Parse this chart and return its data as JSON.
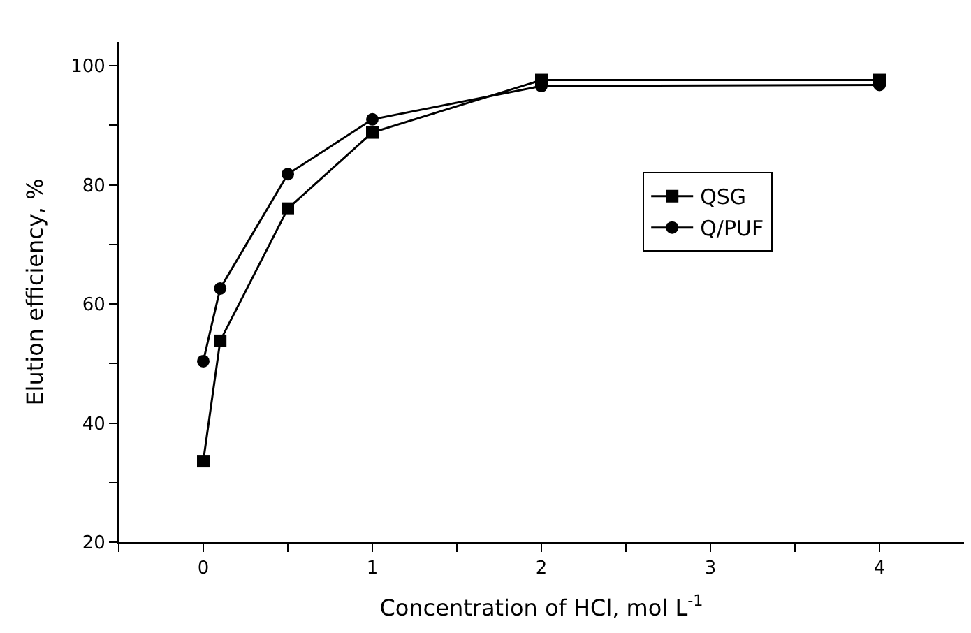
{
  "chart_data": {
    "type": "line",
    "xlabel": "Concentration of HCl, mol L$^{-1}$",
    "ylabel": "Elution efficiency, %",
    "x": [
      0,
      0.1,
      0.5,
      1,
      2,
      4
    ],
    "series": [
      {
        "name": "QSG",
        "color": "#000000",
        "marker": "square",
        "values": [
          33.6,
          53.8,
          76.0,
          88.8,
          97.6,
          97.6
        ]
      },
      {
        "name": "Q/PUF",
        "color": "#000000",
        "marker": "circle",
        "values": [
          50.4,
          62.6,
          81.8,
          91.0,
          96.6,
          96.8
        ]
      }
    ],
    "xlim": [
      -0.5,
      4.5
    ],
    "xticks": [
      {
        "value": -0.5,
        "label": null
      },
      0,
      {
        "value": 0.5,
        "label": null
      },
      1,
      {
        "value": 1.5,
        "label": null
      },
      2,
      {
        "value": 2.5,
        "label": null
      },
      3,
      {
        "value": 3.5,
        "label": null
      },
      4
    ],
    "ylim": [
      20,
      104
    ],
    "yticks": [
      20,
      {
        "value": 30,
        "label": null
      },
      40,
      {
        "value": 50,
        "label": null
      },
      60,
      {
        "value": 70,
        "label": null
      },
      80,
      {
        "value": 90,
        "label": null
      },
      100
    ],
    "legend": "right",
    "line_style": "solid"
  }
}
